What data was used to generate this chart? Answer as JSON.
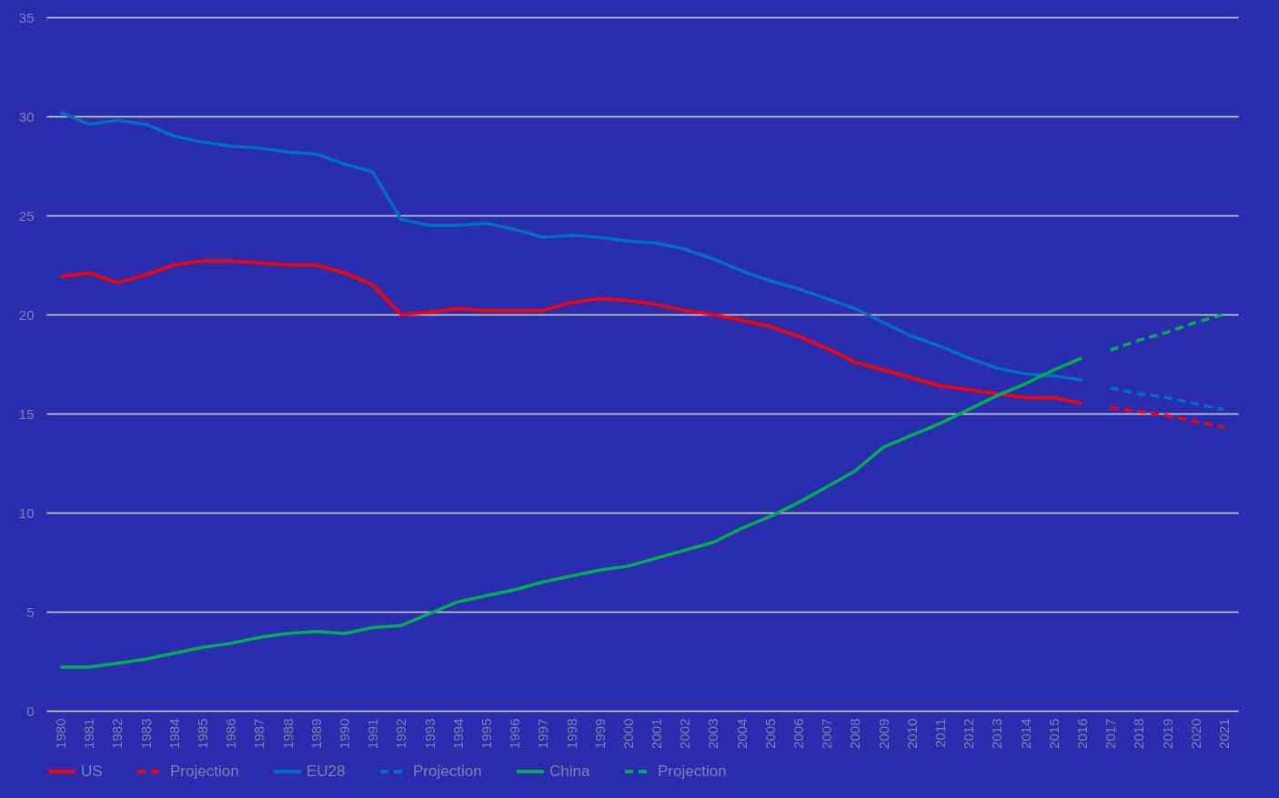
{
  "chart_data": {
    "type": "line",
    "categories": [
      "1980",
      "1981",
      "1982",
      "1983",
      "1984",
      "1985",
      "1986",
      "1987",
      "1988",
      "1989",
      "1990",
      "1991",
      "1992",
      "1993",
      "1994",
      "1995",
      "1996",
      "1997",
      "1998",
      "1999",
      "2000",
      "2001",
      "2002",
      "2003",
      "2004",
      "2005",
      "2006",
      "2007",
      "2008",
      "2009",
      "2010",
      "2011",
      "2012",
      "2013",
      "2014",
      "2015",
      "2016",
      "2017",
      "2018",
      "2019",
      "2020",
      "2021"
    ],
    "ylim": [
      0,
      35
    ],
    "yticks": [
      0,
      5,
      10,
      15,
      20,
      25,
      30,
      35
    ],
    "grid": "y",
    "legend": "bottom",
    "series": [
      {
        "name": "US",
        "color": "#ff0000",
        "line_style": "solid",
        "values": [
          21.9,
          22.1,
          21.6,
          22.0,
          22.5,
          22.7,
          22.7,
          22.6,
          22.5,
          22.5,
          22.1,
          21.5,
          20.0,
          20.1,
          20.3,
          20.2,
          20.2,
          20.2,
          20.6,
          20.8,
          20.7,
          20.5,
          20.2,
          20.0,
          19.7,
          19.4,
          18.9,
          18.3,
          17.6,
          17.2,
          16.8,
          16.4,
          16.2,
          16.0,
          15.8,
          15.8,
          15.5,
          null,
          null,
          null,
          null,
          null
        ]
      },
      {
        "name": "Projection",
        "color": "#ff0000",
        "line_style": "dashed",
        "values": [
          null,
          null,
          null,
          null,
          null,
          null,
          null,
          null,
          null,
          null,
          null,
          null,
          null,
          null,
          null,
          null,
          null,
          null,
          null,
          null,
          null,
          null,
          null,
          null,
          null,
          null,
          null,
          null,
          null,
          null,
          null,
          null,
          null,
          null,
          null,
          null,
          null,
          15.3,
          15.1,
          14.9,
          14.6,
          14.3
        ]
      },
      {
        "name": "EU28",
        "color": "#0070c0",
        "line_style": "solid",
        "values": [
          30.2,
          29.6,
          29.8,
          29.6,
          29.0,
          28.7,
          28.5,
          28.4,
          28.2,
          28.1,
          27.6,
          27.2,
          24.8,
          24.5,
          24.5,
          24.6,
          24.3,
          23.9,
          24.0,
          23.9,
          23.7,
          23.6,
          23.3,
          22.8,
          22.2,
          21.7,
          21.3,
          20.8,
          20.3,
          19.6,
          18.9,
          18.4,
          17.8,
          17.3,
          17.0,
          16.9,
          16.7,
          null,
          null,
          null,
          null,
          null
        ]
      },
      {
        "name": "Projection",
        "color": "#0070c0",
        "line_style": "dashed",
        "values": [
          null,
          null,
          null,
          null,
          null,
          null,
          null,
          null,
          null,
          null,
          null,
          null,
          null,
          null,
          null,
          null,
          null,
          null,
          null,
          null,
          null,
          null,
          null,
          null,
          null,
          null,
          null,
          null,
          null,
          null,
          null,
          null,
          null,
          null,
          null,
          null,
          null,
          16.3,
          16.0,
          15.8,
          15.5,
          15.2
        ]
      },
      {
        "name": "China",
        "color": "#00b050",
        "line_style": "solid",
        "values": [
          2.2,
          2.2,
          2.4,
          2.6,
          2.9,
          3.2,
          3.4,
          3.7,
          3.9,
          4.0,
          3.9,
          4.2,
          4.3,
          4.9,
          5.5,
          5.8,
          6.1,
          6.5,
          6.8,
          7.1,
          7.3,
          7.7,
          8.1,
          8.5,
          9.2,
          9.8,
          10.5,
          11.3,
          12.1,
          13.3,
          13.9,
          14.5,
          15.2,
          15.9,
          16.5,
          17.2,
          17.8,
          null,
          null,
          null,
          null,
          null
        ]
      },
      {
        "name": "Projection",
        "color": "#00b050",
        "line_style": "dashed",
        "values": [
          null,
          null,
          null,
          null,
          null,
          null,
          null,
          null,
          null,
          null,
          null,
          null,
          null,
          null,
          null,
          null,
          null,
          null,
          null,
          null,
          null,
          null,
          null,
          null,
          null,
          null,
          null,
          null,
          null,
          null,
          null,
          null,
          null,
          null,
          null,
          null,
          null,
          18.2,
          18.7,
          19.1,
          19.6,
          20.0
        ]
      }
    ]
  }
}
